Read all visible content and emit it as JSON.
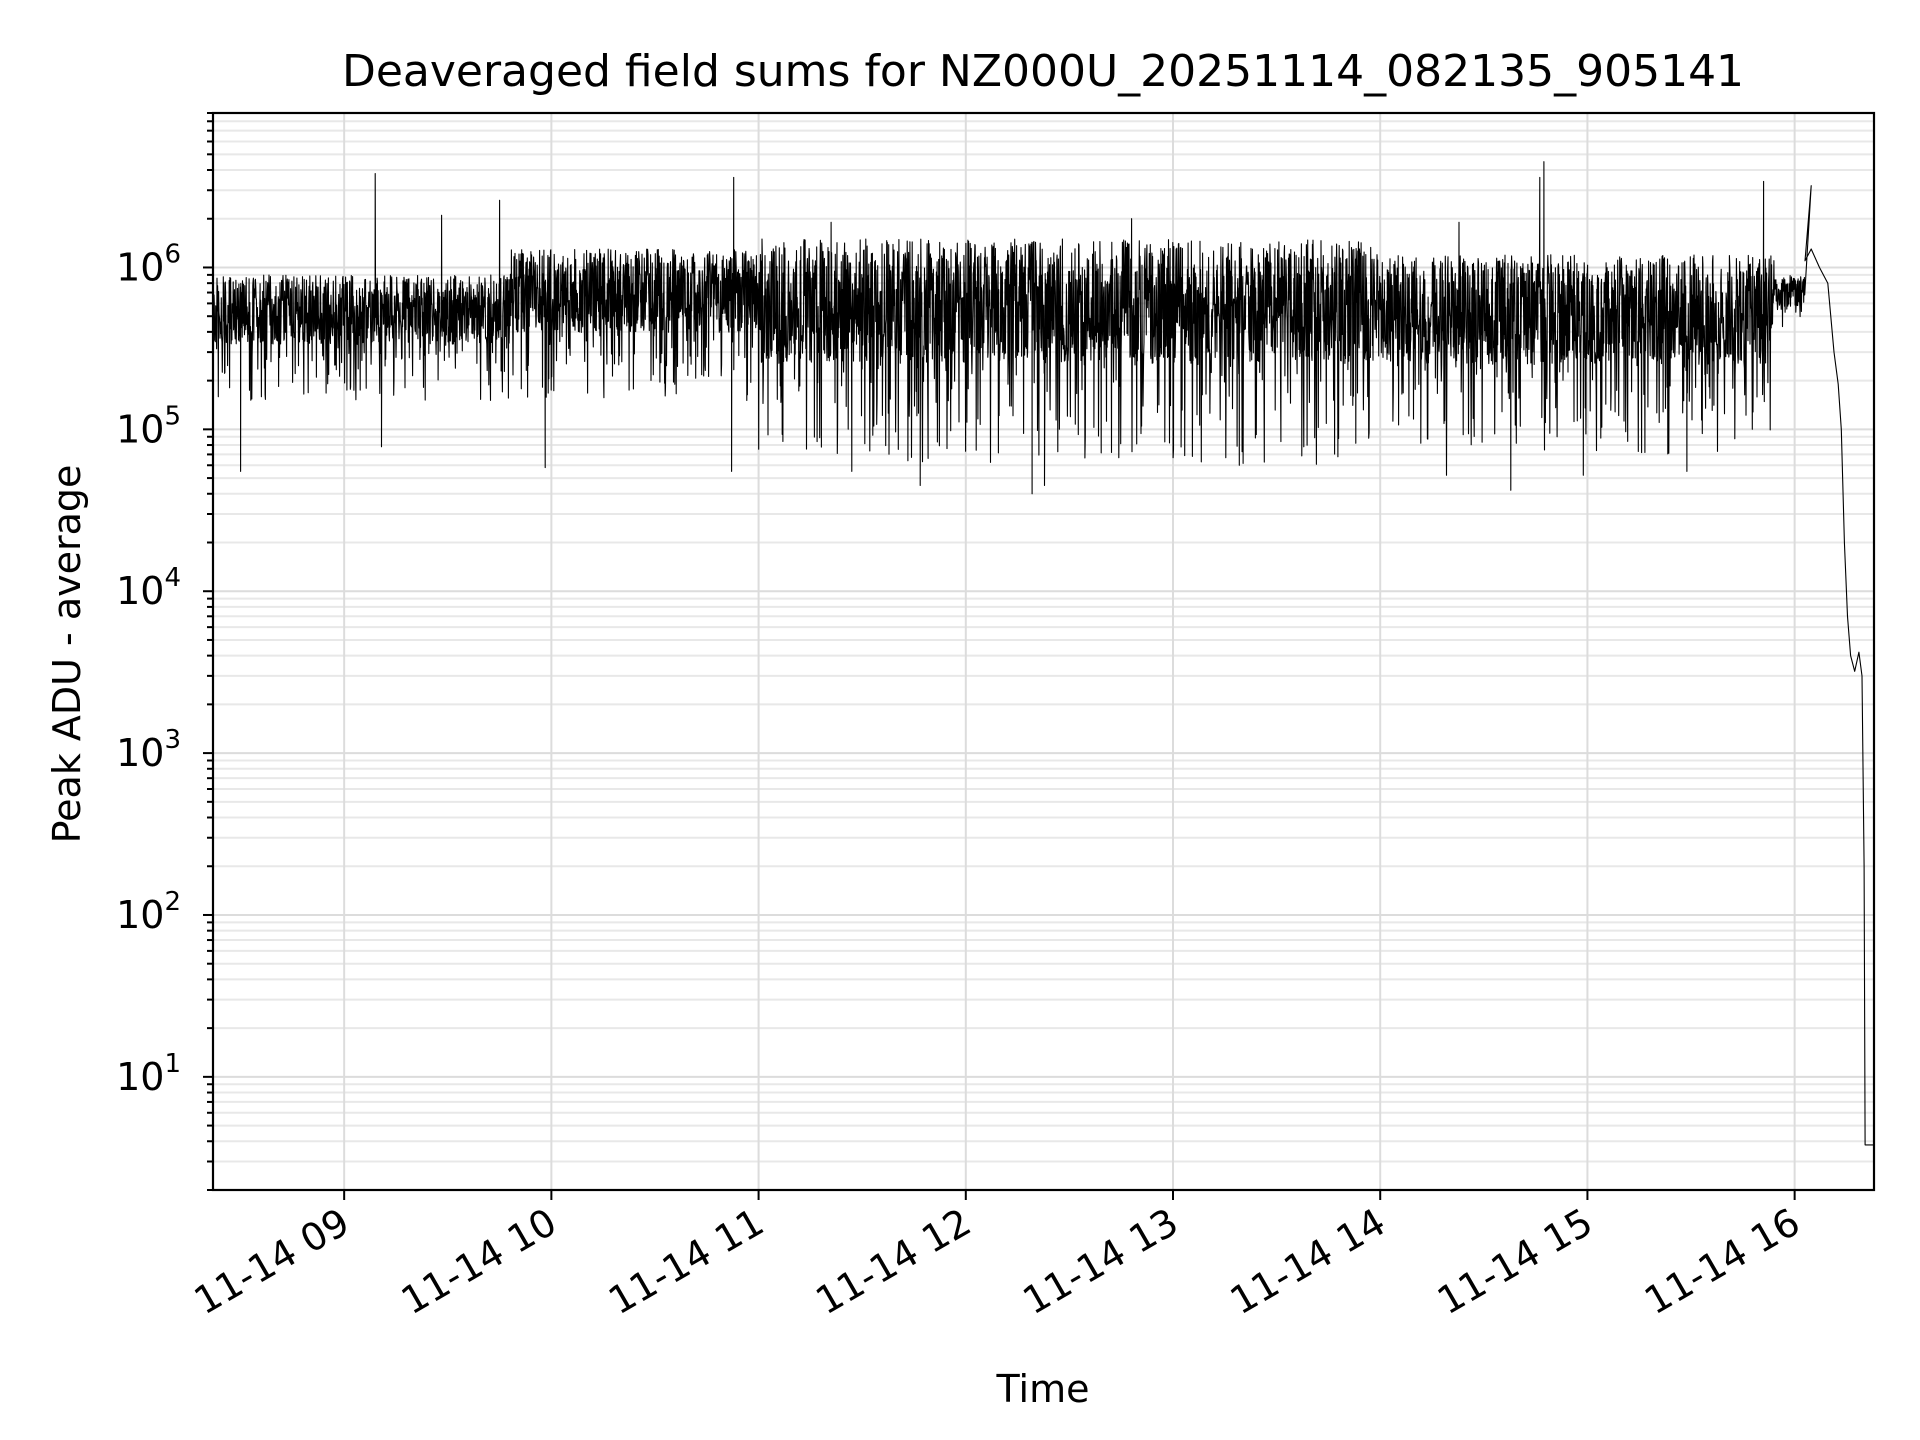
{
  "chart_data": {
    "type": "line",
    "title": "Deaveraged field sums for NZ000U_20251114_082135_905141",
    "xlabel": "Time",
    "ylabel": "Peak ADU - average",
    "yscale": "log",
    "ylim": [
      2,
      9000000
    ],
    "xlim_hours": [
      8.367,
      16.383
    ],
    "grid": true,
    "x_ticks": [
      {
        "hour": 9,
        "label": "11-14 09"
      },
      {
        "hour": 10,
        "label": "11-14 10"
      },
      {
        "hour": 11,
        "label": "11-14 11"
      },
      {
        "hour": 12,
        "label": "11-14 12"
      },
      {
        "hour": 13,
        "label": "11-14 13"
      },
      {
        "hour": 14,
        "label": "11-14 14"
      },
      {
        "hour": 15,
        "label": "11-14 15"
      },
      {
        "hour": 16,
        "label": "11-14 16"
      }
    ],
    "y_ticks": [
      {
        "exp": 1,
        "base": "10",
        "sup": "1"
      },
      {
        "exp": 2,
        "base": "10",
        "sup": "2"
      },
      {
        "exp": 3,
        "base": "10",
        "sup": "3"
      },
      {
        "exp": 4,
        "base": "10",
        "sup": "4"
      },
      {
        "exp": 5,
        "base": "10",
        "sup": "5"
      },
      {
        "exp": 6,
        "base": "10",
        "sup": "6"
      }
    ],
    "series": [
      {
        "name": "field sums",
        "color": "#000000",
        "noise_band": [
          {
            "start_hour": 8.367,
            "end_hour": 9.8,
            "low": 150000,
            "high": 900000
          },
          {
            "start_hour": 9.8,
            "end_hour": 11.0,
            "low": 150000,
            "high": 1300000
          },
          {
            "start_hour": 11.0,
            "end_hour": 14.0,
            "low": 60000,
            "high": 1500000
          },
          {
            "start_hour": 14.0,
            "end_hour": 15.9,
            "low": 70000,
            "high": 1200000
          },
          {
            "start_hour": 15.9,
            "end_hour": 16.07,
            "low": 400000,
            "high": 900000
          }
        ],
        "spikes": [
          {
            "hour": 9.15,
            "value": 3800000
          },
          {
            "hour": 9.47,
            "value": 2100000
          },
          {
            "hour": 9.75,
            "value": 2600000
          },
          {
            "hour": 10.88,
            "value": 3600000
          },
          {
            "hour": 11.35,
            "value": 1900000
          },
          {
            "hour": 12.8,
            "value": 2000000
          },
          {
            "hour": 14.38,
            "value": 1900000
          },
          {
            "hour": 14.79,
            "value": 4500000
          },
          {
            "hour": 14.77,
            "value": 3600000
          },
          {
            "hour": 15.85,
            "value": 3400000
          },
          {
            "hour": 16.08,
            "value": 3200000
          }
        ],
        "dips": [
          {
            "hour": 8.5,
            "value": 55000
          },
          {
            "hour": 9.18,
            "value": 78000
          },
          {
            "hour": 9.97,
            "value": 58000
          },
          {
            "hour": 10.87,
            "value": 55000
          },
          {
            "hour": 11.45,
            "value": 55000
          },
          {
            "hour": 11.78,
            "value": 45000
          },
          {
            "hour": 12.32,
            "value": 40000
          },
          {
            "hour": 12.38,
            "value": 45000
          },
          {
            "hour": 13.32,
            "value": 60000
          },
          {
            "hour": 14.32,
            "value": 52000
          },
          {
            "hour": 14.63,
            "value": 42000
          },
          {
            "hour": 14.98,
            "value": 52000
          },
          {
            "hour": 15.48,
            "value": 55000
          }
        ],
        "tail": [
          {
            "hour": 16.05,
            "value": 1100000
          },
          {
            "hour": 16.08,
            "value": 1300000
          },
          {
            "hour": 16.12,
            "value": 1000000
          },
          {
            "hour": 16.16,
            "value": 800000
          },
          {
            "hour": 16.19,
            "value": 300000
          },
          {
            "hour": 16.21,
            "value": 190000
          },
          {
            "hour": 16.225,
            "value": 100000
          },
          {
            "hour": 16.24,
            "value": 20000
          },
          {
            "hour": 16.255,
            "value": 7000
          },
          {
            "hour": 16.27,
            "value": 4000
          },
          {
            "hour": 16.29,
            "value": 3200
          },
          {
            "hour": 16.31,
            "value": 4200
          },
          {
            "hour": 16.325,
            "value": 3000
          },
          {
            "hour": 16.335,
            "value": 200
          },
          {
            "hour": 16.34,
            "value": 3.8
          },
          {
            "hour": 16.383,
            "value": 3.8
          }
        ]
      }
    ]
  }
}
